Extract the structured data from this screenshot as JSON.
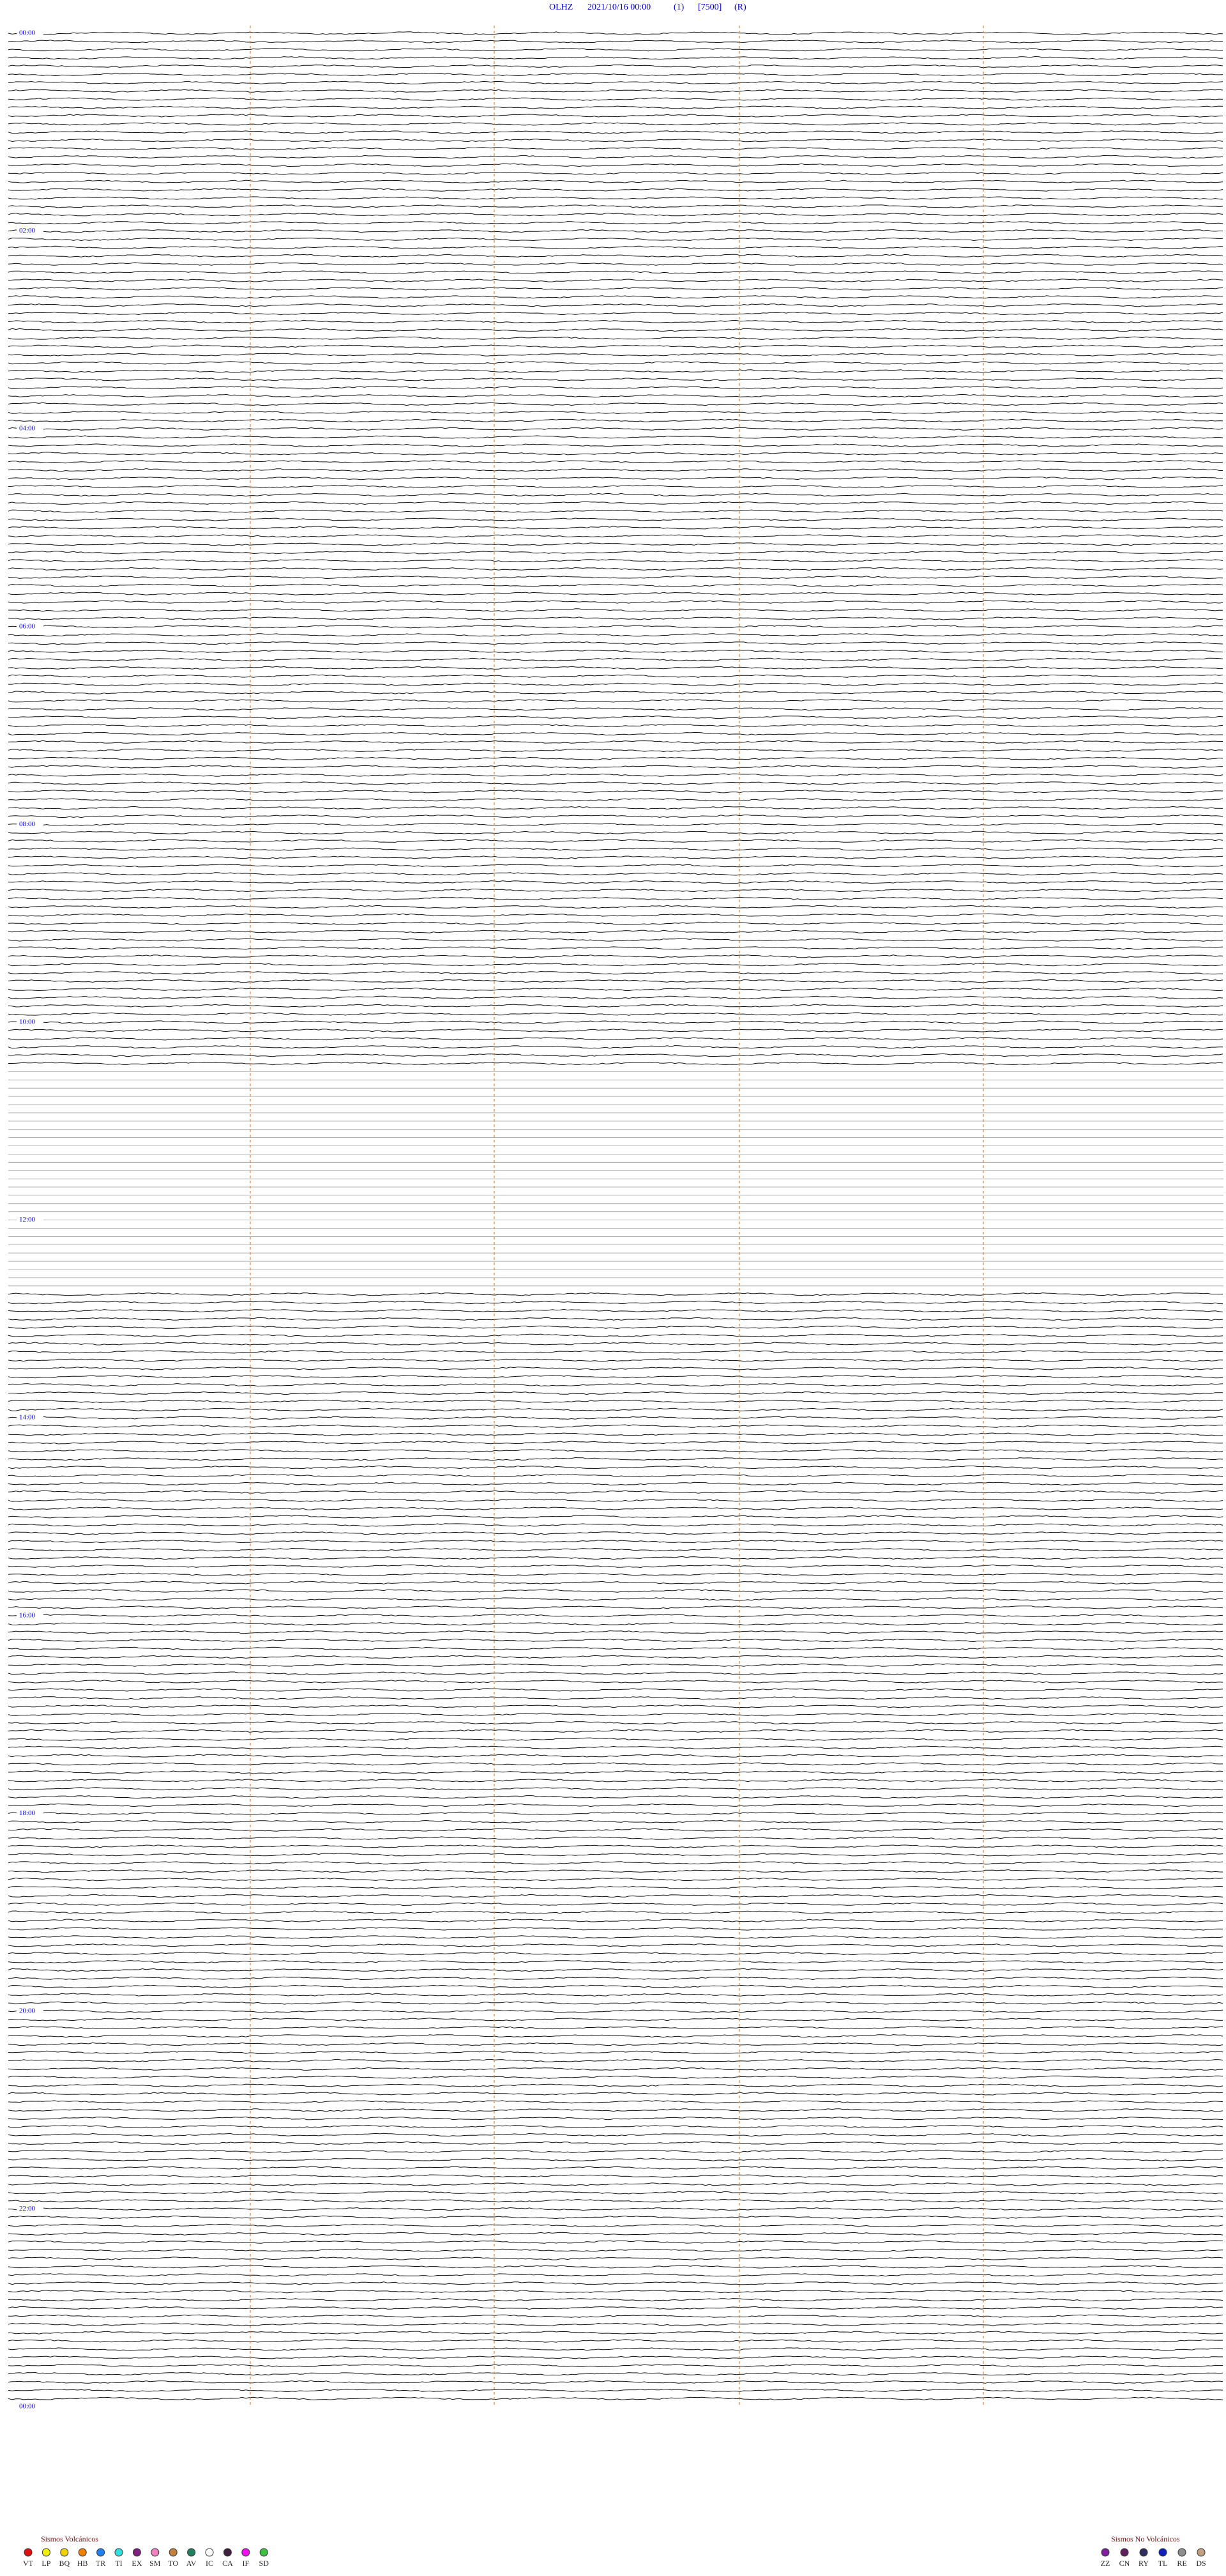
{
  "header": {
    "station": "OLHZ",
    "datetime": "2021/10/16 00:00",
    "page": "(1)",
    "scale": "[7500]",
    "mode": "(R)"
  },
  "hour_labels": [
    "00:00",
    "02:00",
    "04:00",
    "06:00",
    "08:00",
    "10:00",
    "12:00",
    "14:00",
    "16:00",
    "18:00",
    "20:00",
    "22:00",
    "00:00"
  ],
  "legend": {
    "volcanic": {
      "title": "Sismos Volcánicos",
      "items": [
        {
          "code": "VT",
          "color": "#e01010"
        },
        {
          "code": "LP",
          "color": "#f0f000"
        },
        {
          "code": "BQ",
          "color": "#f0d000"
        },
        {
          "code": "HB",
          "color": "#f08000"
        },
        {
          "code": "TR",
          "color": "#2080f0"
        },
        {
          "code": "TI",
          "color": "#30e0e0"
        },
        {
          "code": "EX",
          "color": "#802080"
        },
        {
          "code": "SM",
          "color": "#f080c0"
        },
        {
          "code": "TO",
          "color": "#c08040"
        },
        {
          "code": "AV",
          "color": "#208060"
        },
        {
          "code": "IC",
          "color": "#ffffff"
        },
        {
          "code": "CA",
          "color": "#402040"
        },
        {
          "code": "IF",
          "color": "#f010f0"
        },
        {
          "code": "SD",
          "color": "#40c040"
        }
      ]
    },
    "non_volcanic": {
      "title": "Sismos No Volcánicos",
      "items": [
        {
          "code": "ZZ",
          "color": "#8020a0"
        },
        {
          "code": "CN",
          "color": "#602060"
        },
        {
          "code": "RY",
          "color": "#303060"
        },
        {
          "code": "TL",
          "color": "#1020c0"
        },
        {
          "code": "RE",
          "color": "#909090"
        },
        {
          "code": "DS",
          "color": "#c0a080"
        }
      ]
    }
  }
}
